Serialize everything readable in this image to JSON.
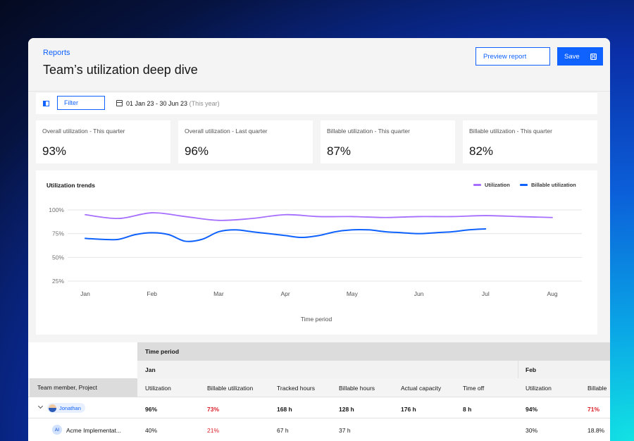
{
  "header": {
    "breadcrumb": "Reports",
    "title": "Team’s utilization deep dive",
    "preview_label": "Preview report",
    "save_label": "Save"
  },
  "toolbar": {
    "filter_label": "Filter",
    "date_range": "01 Jan 23 - 30 Jun 23",
    "date_note": "(This year)"
  },
  "kpis": [
    {
      "label": "Overall utilization - This quarter",
      "value": "93%"
    },
    {
      "label": "Overall utilization - Last quarter",
      "value": "96%"
    },
    {
      "label": "Billable utilization - This quarter",
      "value": "87%"
    },
    {
      "label": "Billable utilization - This quarter",
      "value": "82%"
    }
  ],
  "chart_data": {
    "type": "line",
    "title": "Utilization trends",
    "xlabel": "Time period",
    "ylabel": "",
    "categories": [
      "Jan",
      "Feb",
      "Mar",
      "Apr",
      "May",
      "Jun",
      "Jul",
      "Aug"
    ],
    "y_ticks": [
      "100%",
      "75%",
      "50%",
      "25%"
    ],
    "ylim": [
      25,
      100
    ],
    "legend_position": "top-right",
    "series": [
      {
        "name": "Utilization",
        "color": "#a56eff",
        "x": [
          0,
          0.5,
          1,
          1.5,
          2,
          2.5,
          3,
          3.5,
          4,
          4.5,
          5,
          5.5,
          6,
          6.5,
          7
        ],
        "values": [
          95,
          91,
          97,
          93,
          89,
          91,
          95,
          93,
          93,
          92,
          93,
          93,
          94,
          93,
          92
        ]
      },
      {
        "name": "Billable utilization",
        "color": "#0f62fe",
        "x": [
          0,
          0.25,
          0.5,
          0.75,
          1,
          1.25,
          1.5,
          1.75,
          2,
          2.25,
          2.5,
          2.75,
          3,
          3.25,
          3.5,
          3.75,
          4,
          4.25,
          4.5,
          4.75,
          5,
          5.25,
          5.5,
          5.75,
          6
        ],
        "values": [
          70,
          69,
          69,
          74,
          76,
          74,
          67,
          69,
          77,
          79,
          77,
          75,
          73,
          71,
          73,
          77,
          79,
          79,
          77,
          76,
          75,
          76,
          77,
          79,
          80
        ]
      }
    ]
  },
  "table": {
    "time_period_label": "Time period",
    "month_jan": "Jan",
    "month_feb": "Feb",
    "first_col_header": "Team member, Project",
    "columns": [
      "Utilization",
      "Billable utilization",
      "Tracked hours",
      "Billable hours",
      "Actual capacity",
      "Time off",
      "Utilization",
      "Billable"
    ],
    "rows": [
      {
        "name": "Jonathan",
        "cells": [
          "96%",
          "73%",
          "168 h",
          "128 h",
          "176 h",
          "8 h",
          "94%",
          "71%"
        ]
      },
      {
        "initials": "AI",
        "name": "Acme Implementat...",
        "cells": [
          "40%",
          "21%",
          "67 h",
          "37 h",
          "",
          "",
          "30%",
          "18.8%"
        ]
      }
    ]
  }
}
